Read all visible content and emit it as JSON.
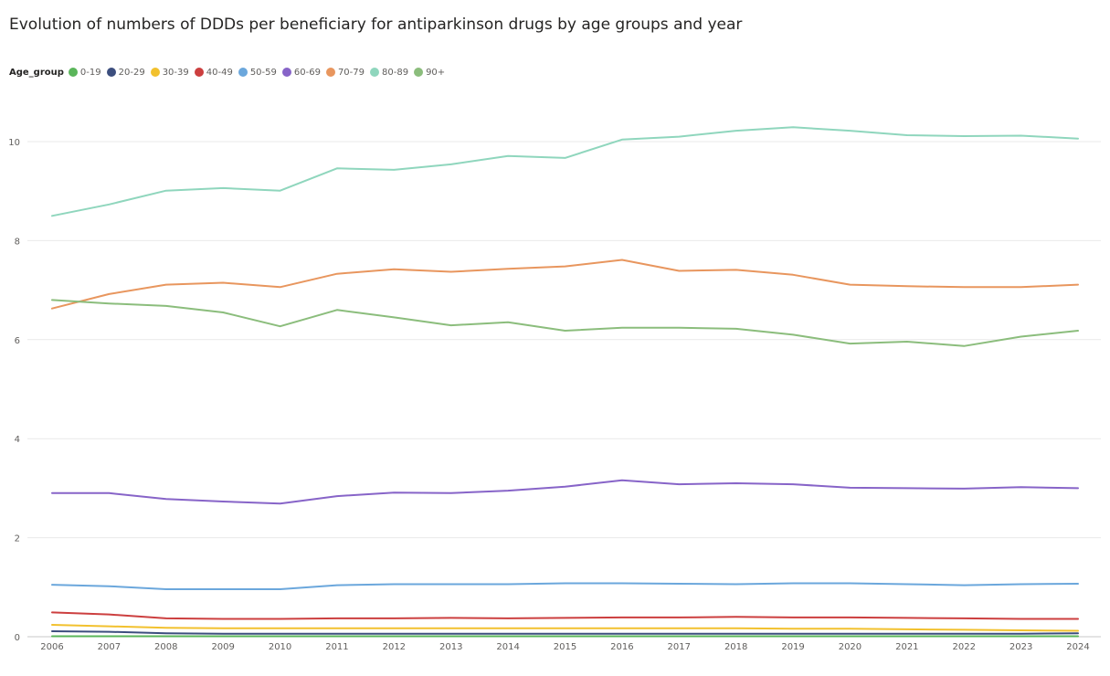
{
  "chart_data": {
    "type": "line",
    "title": "Evolution of numbers of DDDs per beneficiary for antiparkinson drugs by age groups and year",
    "legend_title": "Age_group",
    "legend_position": "top-left",
    "grid": true,
    "xlabel": "",
    "ylabel": "",
    "ylim": [
      0,
      10.6
    ],
    "yticks": [
      0,
      2,
      4,
      6,
      8,
      10
    ],
    "x": [
      "2006",
      "2007",
      "2008",
      "2009",
      "2010",
      "2011",
      "2012",
      "2013",
      "2014",
      "2015",
      "2016",
      "2017",
      "2018",
      "2019",
      "2020",
      "2021",
      "2022",
      "2023",
      "2024"
    ],
    "series": [
      {
        "name": "0-19",
        "color": "#5ab55a",
        "values": [
          0.01,
          0.01,
          0.01,
          0.01,
          0.01,
          0.01,
          0.01,
          0.01,
          0.01,
          0.01,
          0.01,
          0.01,
          0.01,
          0.01,
          0.01,
          0.01,
          0.01,
          0.01,
          0.01
        ]
      },
      {
        "name": "20-29",
        "color": "#3c4e7e",
        "values": [
          0.11,
          0.1,
          0.07,
          0.06,
          0.06,
          0.06,
          0.06,
          0.06,
          0.06,
          0.06,
          0.06,
          0.06,
          0.06,
          0.06,
          0.06,
          0.06,
          0.06,
          0.06,
          0.07
        ]
      },
      {
        "name": "30-39",
        "color": "#f2c12e",
        "values": [
          0.24,
          0.21,
          0.18,
          0.17,
          0.17,
          0.17,
          0.17,
          0.17,
          0.17,
          0.17,
          0.17,
          0.17,
          0.17,
          0.16,
          0.16,
          0.15,
          0.14,
          0.13,
          0.12
        ]
      },
      {
        "name": "40-49",
        "color": "#cc3f3f",
        "values": [
          0.49,
          0.45,
          0.37,
          0.36,
          0.36,
          0.37,
          0.37,
          0.38,
          0.37,
          0.38,
          0.39,
          0.39,
          0.4,
          0.39,
          0.39,
          0.38,
          0.37,
          0.36,
          0.36
        ]
      },
      {
        "name": "50-59",
        "color": "#6ba7dc",
        "values": [
          1.05,
          1.02,
          0.96,
          0.96,
          0.96,
          1.04,
          1.06,
          1.06,
          1.06,
          1.08,
          1.08,
          1.07,
          1.06,
          1.08,
          1.08,
          1.06,
          1.04,
          1.06,
          1.07
        ]
      },
      {
        "name": "60-69",
        "color": "#8764c8",
        "values": [
          2.9,
          2.9,
          2.78,
          2.73,
          2.69,
          2.84,
          2.91,
          2.9,
          2.95,
          3.03,
          3.16,
          3.08,
          3.1,
          3.08,
          3.01,
          3.0,
          2.99,
          3.02,
          3.0
        ]
      },
      {
        "name": "70-79",
        "color": "#e8965e",
        "values": [
          6.63,
          6.92,
          7.11,
          7.15,
          7.06,
          7.33,
          7.42,
          7.37,
          7.43,
          7.48,
          7.61,
          7.39,
          7.41,
          7.31,
          7.11,
          7.08,
          7.06,
          7.06,
          7.11
        ]
      },
      {
        "name": "80-89",
        "color": "#8fd6bd",
        "values": [
          8.5,
          8.73,
          9.01,
          9.06,
          9.01,
          9.46,
          9.43,
          9.54,
          9.71,
          9.67,
          10.04,
          10.1,
          10.22,
          10.29,
          10.22,
          10.13,
          10.11,
          10.12,
          10.06
        ]
      },
      {
        "name": "90+",
        "color": "#8bbd7c",
        "values": [
          6.8,
          6.73,
          6.68,
          6.55,
          6.27,
          6.6,
          6.45,
          6.29,
          6.35,
          6.18,
          6.24,
          6.24,
          6.22,
          6.1,
          5.92,
          5.96,
          5.87,
          6.06,
          6.18
        ]
      }
    ]
  }
}
